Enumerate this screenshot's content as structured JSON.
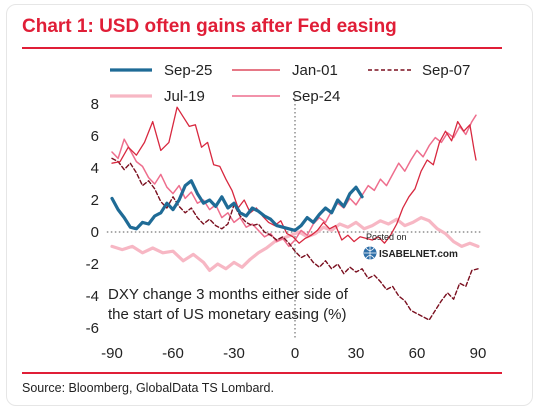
{
  "page": {
    "title": "Chart 1: USD often gains after Fed easing",
    "source": "Source: Bloomberg, GlobalData TS Lombard."
  },
  "watermark": {
    "line1": "Posted on",
    "line2": "ISABELNET.com"
  },
  "chart_data": {
    "type": "line",
    "title": "Chart 1: USD often gains after Fed easing",
    "annotation": [
      "DXY change 3 months either side of",
      "the start of US monetary easing (%)"
    ],
    "xlim": [
      -95,
      92
    ],
    "ylim": [
      -6.4,
      8.4
    ],
    "xticks": [
      -90,
      -60,
      -30,
      0,
      30,
      60,
      90
    ],
    "yticks": [
      8,
      6,
      4,
      2,
      0,
      -2,
      -4,
      -6
    ],
    "grid": false,
    "zero_line": true,
    "vertical_marker_x": 0,
    "legend_position": "top",
    "series": [
      {
        "name": "Sep-25",
        "color": "#1f6b96",
        "style": "solid",
        "width": 3.2,
        "points": [
          [
            -90,
            2.1
          ],
          [
            -87,
            1.4
          ],
          [
            -84,
            0.9
          ],
          [
            -81,
            0.3
          ],
          [
            -78,
            0.2
          ],
          [
            -75,
            0.6
          ],
          [
            -72,
            0.5
          ],
          [
            -69,
            1.0
          ],
          [
            -66,
            1.2
          ],
          [
            -63,
            1.8
          ],
          [
            -60,
            1.4
          ],
          [
            -57,
            2.0
          ],
          [
            -54,
            2.9
          ],
          [
            -51,
            3.2
          ],
          [
            -48,
            2.4
          ],
          [
            -45,
            1.8
          ],
          [
            -42,
            2.0
          ],
          [
            -39,
            1.6
          ],
          [
            -36,
            2.2
          ],
          [
            -33,
            1.5
          ],
          [
            -30,
            1.8
          ],
          [
            -27,
            1.2
          ],
          [
            -24,
            1.0
          ],
          [
            -21,
            1.5
          ],
          [
            -18,
            1.3
          ],
          [
            -15,
            1.0
          ],
          [
            -12,
            0.8
          ],
          [
            -9,
            0.4
          ],
          [
            -6,
            0.3
          ],
          [
            -3,
            0.2
          ],
          [
            0,
            0.1
          ],
          [
            3,
            0.4
          ],
          [
            6,
            0.9
          ],
          [
            9,
            0.6
          ],
          [
            12,
            1.1
          ],
          [
            15,
            1.5
          ],
          [
            18,
            1.2
          ],
          [
            21,
            2.0
          ],
          [
            24,
            1.6
          ],
          [
            27,
            2.4
          ],
          [
            30,
            2.8
          ],
          [
            33,
            2.2
          ]
        ]
      },
      {
        "name": "Jan-01",
        "color": "#d8283f",
        "style": "solid",
        "width": 1.3,
        "points": [
          [
            -90,
            4.3
          ],
          [
            -86,
            4.4
          ],
          [
            -82,
            5.3
          ],
          [
            -78,
            4.8
          ],
          [
            -74,
            5.6
          ],
          [
            -70,
            6.9
          ],
          [
            -66,
            5.1
          ],
          [
            -62,
            5.6
          ],
          [
            -58,
            7.8
          ],
          [
            -55,
            7.2
          ],
          [
            -52,
            6.6
          ],
          [
            -49,
            6.7
          ],
          [
            -46,
            5.3
          ],
          [
            -43,
            5.6
          ],
          [
            -40,
            4.2
          ],
          [
            -37,
            4.1
          ],
          [
            -34,
            3.3
          ],
          [
            -31,
            2.6
          ],
          [
            -28,
            1.5
          ],
          [
            -25,
            2.0
          ],
          [
            -22,
            1.2
          ],
          [
            -19,
            1.5
          ],
          [
            -16,
            1.0
          ],
          [
            -13,
            0.6
          ],
          [
            -10,
            0.4
          ],
          [
            -7,
            0.7
          ],
          [
            -4,
            -0.1
          ],
          [
            -1,
            -0.3
          ],
          [
            2,
            -0.7
          ],
          [
            5,
            -0.4
          ],
          [
            8,
            -0.2
          ],
          [
            11,
            0.1
          ],
          [
            14,
            0.6
          ],
          [
            17,
            0.2
          ],
          [
            20,
            0.4
          ],
          [
            23,
            -0.5
          ],
          [
            26,
            -0.2
          ],
          [
            29,
            -0.6
          ],
          [
            32,
            -0.3
          ],
          [
            35,
            -0.4
          ],
          [
            38,
            -0.5
          ],
          [
            41,
            -0.3
          ],
          [
            44,
            -0.7
          ],
          [
            47,
            -0.2
          ],
          [
            50,
            0.5
          ],
          [
            53,
            1.5
          ],
          [
            56,
            2.2
          ],
          [
            59,
            2.7
          ],
          [
            62,
            3.8
          ],
          [
            65,
            4.5
          ],
          [
            68,
            4.2
          ],
          [
            71,
            5.6
          ],
          [
            74,
            6.3
          ],
          [
            77,
            5.7
          ],
          [
            80,
            6.9
          ],
          [
            83,
            6.3
          ],
          [
            86,
            6.7
          ],
          [
            88,
            5.2
          ],
          [
            89,
            4.5
          ]
        ]
      },
      {
        "name": "Sep-07",
        "color": "#7a0f1f",
        "style": "dashed",
        "width": 1.4,
        "points": [
          [
            -90,
            4.6
          ],
          [
            -87,
            4.4
          ],
          [
            -84,
            3.9
          ],
          [
            -81,
            4.3
          ],
          [
            -78,
            3.7
          ],
          [
            -75,
            2.9
          ],
          [
            -72,
            3.2
          ],
          [
            -69,
            2.7
          ],
          [
            -66,
            1.9
          ],
          [
            -63,
            1.5
          ],
          [
            -60,
            2.2
          ],
          [
            -57,
            1.6
          ],
          [
            -54,
            1.2
          ],
          [
            -51,
            1.5
          ],
          [
            -48,
            0.9
          ],
          [
            -45,
            0.5
          ],
          [
            -42,
            0.8
          ],
          [
            -39,
            0.4
          ],
          [
            -36,
            0.2
          ],
          [
            -33,
            0.5
          ],
          [
            -30,
            1.7
          ],
          [
            -27,
            1.0
          ],
          [
            -24,
            0.6
          ],
          [
            -21,
            0.4
          ],
          [
            -18,
            0.5
          ],
          [
            -15,
            0.0
          ],
          [
            -12,
            -0.2
          ],
          [
            -9,
            -0.5
          ],
          [
            -6,
            -0.3
          ],
          [
            -3,
            -0.7
          ],
          [
            0,
            -1.2
          ],
          [
            3,
            -1.6
          ],
          [
            6,
            -1.4
          ],
          [
            9,
            -1.9
          ],
          [
            12,
            -2.2
          ],
          [
            15,
            -1.8
          ],
          [
            18,
            -2.3
          ],
          [
            21,
            -2.0
          ],
          [
            24,
            -2.6
          ],
          [
            27,
            -2.2
          ],
          [
            30,
            -2.5
          ],
          [
            33,
            -2.3
          ],
          [
            36,
            -2.9
          ],
          [
            39,
            -2.7
          ],
          [
            42,
            -3.1
          ],
          [
            45,
            -3.6
          ],
          [
            48,
            -3.4
          ],
          [
            51,
            -4.0
          ],
          [
            54,
            -4.3
          ],
          [
            57,
            -4.9
          ],
          [
            60,
            -5.1
          ],
          [
            63,
            -5.3
          ],
          [
            66,
            -5.5
          ],
          [
            69,
            -4.9
          ],
          [
            72,
            -4.3
          ],
          [
            75,
            -3.8
          ],
          [
            78,
            -4.2
          ],
          [
            81,
            -3.2
          ],
          [
            84,
            -3.4
          ],
          [
            87,
            -2.4
          ],
          [
            90,
            -2.3
          ]
        ]
      },
      {
        "name": "Jul-19",
        "color": "#f7b7c4",
        "style": "solid",
        "width": 3.2,
        "points": [
          [
            -90,
            -0.9
          ],
          [
            -85,
            -1.1
          ],
          [
            -80,
            -0.9
          ],
          [
            -75,
            -1.3
          ],
          [
            -70,
            -1.0
          ],
          [
            -65,
            -1.3
          ],
          [
            -60,
            -1.2
          ],
          [
            -55,
            -1.8
          ],
          [
            -50,
            -1.4
          ],
          [
            -45,
            -1.9
          ],
          [
            -42,
            -2.4
          ],
          [
            -38,
            -2.0
          ],
          [
            -34,
            -2.3
          ],
          [
            -30,
            -1.9
          ],
          [
            -26,
            -2.2
          ],
          [
            -22,
            -1.7
          ],
          [
            -18,
            -1.3
          ],
          [
            -14,
            -1.0
          ],
          [
            -10,
            -0.6
          ],
          [
            -6,
            -0.4
          ],
          [
            -2,
            -0.2
          ],
          [
            2,
            0.0
          ],
          [
            6,
            -0.3
          ],
          [
            10,
            -0.1
          ],
          [
            14,
            0.3
          ],
          [
            18,
            0.1
          ],
          [
            22,
            0.5
          ],
          [
            26,
            0.3
          ],
          [
            30,
            0.6
          ],
          [
            34,
            0.2
          ],
          [
            38,
            0.4
          ],
          [
            42,
            0.7
          ],
          [
            46,
            0.5
          ],
          [
            50,
            0.8
          ],
          [
            54,
            0.4
          ],
          [
            58,
            0.6
          ],
          [
            62,
            0.9
          ],
          [
            66,
            0.7
          ],
          [
            70,
            0.2
          ],
          [
            74,
            -0.1
          ],
          [
            78,
            -0.6
          ],
          [
            82,
            -0.9
          ],
          [
            86,
            -0.7
          ],
          [
            90,
            -0.9
          ]
        ]
      },
      {
        "name": "Sep-24",
        "color": "#ee6e8d",
        "style": "solid",
        "width": 1.5,
        "points": [
          [
            -90,
            5.0
          ],
          [
            -87,
            4.6
          ],
          [
            -84,
            5.8
          ],
          [
            -81,
            5.1
          ],
          [
            -78,
            4.4
          ],
          [
            -75,
            4.1
          ],
          [
            -72,
            3.4
          ],
          [
            -69,
            3.0
          ],
          [
            -66,
            3.6
          ],
          [
            -63,
            2.8
          ],
          [
            -60,
            2.4
          ],
          [
            -57,
            2.9
          ],
          [
            -54,
            2.1
          ],
          [
            -51,
            2.5
          ],
          [
            -48,
            1.8
          ],
          [
            -45,
            2.0
          ],
          [
            -42,
            1.4
          ],
          [
            -39,
            1.7
          ],
          [
            -36,
            0.9
          ],
          [
            -33,
            1.2
          ],
          [
            -30,
            0.6
          ],
          [
            -27,
            0.9
          ],
          [
            -24,
            0.3
          ],
          [
            -21,
            0.5
          ],
          [
            -18,
            0.1
          ],
          [
            -15,
            -0.3
          ],
          [
            -12,
            -0.1
          ],
          [
            -9,
            -0.6
          ],
          [
            -6,
            -0.4
          ],
          [
            -3,
            -0.9
          ],
          [
            0,
            -0.5
          ],
          [
            3,
            0.1
          ],
          [
            6,
            -0.2
          ],
          [
            9,
            0.5
          ],
          [
            12,
            0.9
          ],
          [
            15,
            0.6
          ],
          [
            18,
            1.3
          ],
          [
            21,
            1.8
          ],
          [
            24,
            1.5
          ],
          [
            27,
            2.1
          ],
          [
            30,
            1.7
          ],
          [
            33,
            2.3
          ],
          [
            36,
            2.9
          ],
          [
            39,
            2.6
          ],
          [
            42,
            3.3
          ],
          [
            45,
            2.9
          ],
          [
            48,
            3.6
          ],
          [
            51,
            4.3
          ],
          [
            54,
            3.8
          ],
          [
            57,
            4.5
          ],
          [
            60,
            5.1
          ],
          [
            63,
            4.7
          ],
          [
            66,
            5.4
          ],
          [
            69,
            5.9
          ],
          [
            72,
            5.6
          ],
          [
            75,
            6.2
          ],
          [
            78,
            5.9
          ],
          [
            81,
            6.6
          ],
          [
            84,
            6.1
          ],
          [
            87,
            6.9
          ],
          [
            89,
            7.3
          ]
        ]
      }
    ]
  }
}
